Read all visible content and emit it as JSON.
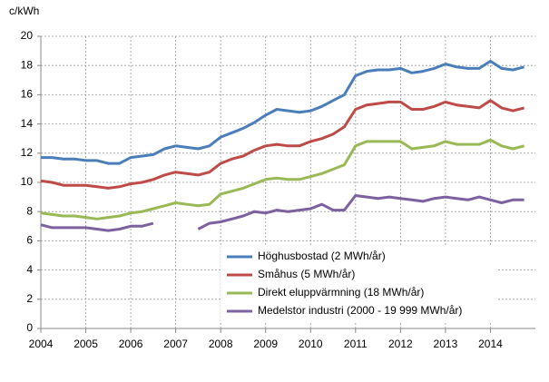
{
  "chart_data": {
    "type": "line",
    "y_label": "c/kWh",
    "x": [
      2004,
      2004.25,
      2004.5,
      2004.75,
      2005,
      2005.25,
      2005.5,
      2005.75,
      2006,
      2006.25,
      2006.5,
      2006.75,
      2007,
      2007.25,
      2007.5,
      2007.75,
      2008,
      2008.25,
      2008.5,
      2008.75,
      2009,
      2009.25,
      2009.5,
      2009.75,
      2010,
      2010.25,
      2010.5,
      2010.75,
      2011,
      2011.25,
      2011.5,
      2011.75,
      2012,
      2012.25,
      2012.5,
      2012.75,
      2013,
      2013.25,
      2013.5,
      2013.75,
      2014,
      2014.25,
      2014.5,
      2014.75
    ],
    "series": [
      {
        "name": "Höghusbostad (2 MWh/år)",
        "color": "#4a7ebb",
        "values": [
          11.7,
          11.7,
          11.6,
          11.6,
          11.5,
          11.5,
          11.3,
          11.3,
          11.7,
          11.8,
          11.9,
          12.3,
          12.5,
          12.4,
          12.3,
          12.5,
          13.1,
          13.4,
          13.7,
          14.1,
          14.6,
          15.0,
          14.9,
          14.8,
          14.9,
          15.2,
          15.6,
          16.0,
          17.3,
          17.6,
          17.7,
          17.7,
          17.8,
          17.5,
          17.6,
          17.8,
          18.1,
          17.9,
          17.8,
          17.8,
          18.3,
          17.8,
          17.7,
          17.9
        ]
      },
      {
        "name": "Småhus (5 MWh/år)",
        "color": "#be4b48",
        "values": [
          10.1,
          10.0,
          9.8,
          9.8,
          9.8,
          9.7,
          9.6,
          9.7,
          9.9,
          10.0,
          10.2,
          10.5,
          10.7,
          10.6,
          10.5,
          10.7,
          11.3,
          11.6,
          11.8,
          12.2,
          12.5,
          12.6,
          12.5,
          12.5,
          12.8,
          13.0,
          13.3,
          13.8,
          15.0,
          15.3,
          15.4,
          15.5,
          15.5,
          15.0,
          15.0,
          15.2,
          15.5,
          15.3,
          15.2,
          15.1,
          15.6,
          15.1,
          14.9,
          15.1
        ]
      },
      {
        "name": "Direkt eluppvärmning (18 MWh/år)",
        "color": "#98b954",
        "values": [
          7.9,
          7.8,
          7.7,
          7.7,
          7.6,
          7.5,
          7.6,
          7.7,
          7.9,
          8.0,
          8.2,
          8.4,
          8.6,
          8.5,
          8.4,
          8.5,
          9.2,
          9.4,
          9.6,
          9.9,
          10.2,
          10.3,
          10.2,
          10.2,
          10.4,
          10.6,
          10.9,
          11.2,
          12.5,
          12.8,
          12.8,
          12.8,
          12.8,
          12.3,
          12.4,
          12.5,
          12.8,
          12.6,
          12.6,
          12.6,
          12.9,
          12.5,
          12.3,
          12.5
        ]
      },
      {
        "name": "Medelstor industri (2000 - 19 999 MWh/år)",
        "color": "#7d60a0",
        "values": [
          7.1,
          6.9,
          6.9,
          6.9,
          6.9,
          6.8,
          6.7,
          6.8,
          7.0,
          7.0,
          7.2,
          null,
          null,
          null,
          6.8,
          7.2,
          7.3,
          7.5,
          7.7,
          8.0,
          7.9,
          8.1,
          8.0,
          8.1,
          8.2,
          8.5,
          8.1,
          8.1,
          9.1,
          9.0,
          8.9,
          9.0,
          8.9,
          8.8,
          8.7,
          8.9,
          9.0,
          8.9,
          8.8,
          9.0,
          8.8,
          8.6,
          8.8,
          8.8
        ]
      }
    ],
    "xlim": [
      2004,
      2015
    ],
    "xticks": [
      2004,
      2005,
      2006,
      2007,
      2008,
      2009,
      2010,
      2011,
      2012,
      2013,
      2014
    ],
    "ylim": [
      0,
      20
    ],
    "yticks": [
      0,
      2,
      4,
      6,
      8,
      10,
      12,
      14,
      16,
      18,
      20
    ],
    "grid": true
  }
}
